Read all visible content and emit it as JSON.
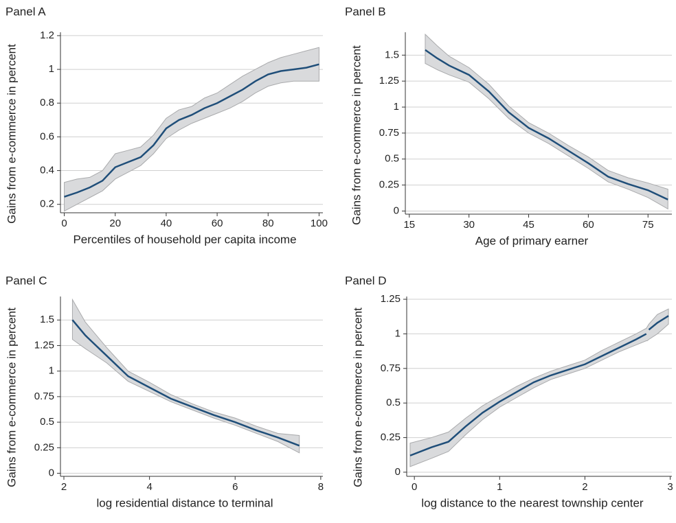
{
  "chart_data": [
    {
      "type": "line",
      "title": "Panel A",
      "xlabel": "Percentiles of household per capita income",
      "ylabel": "Gains from e-commerce in percent",
      "x": [
        0,
        5,
        10,
        15,
        20,
        25,
        30,
        35,
        40,
        45,
        50,
        55,
        60,
        65,
        70,
        75,
        80,
        85,
        90,
        95,
        100
      ],
      "series": [
        {
          "color": "#1f4e79",
          "band_color": "#d9dadc",
          "values": [
            0.245,
            0.27,
            0.3,
            0.34,
            0.42,
            0.45,
            0.48,
            0.55,
            0.65,
            0.7,
            0.73,
            0.77,
            0.8,
            0.84,
            0.88,
            0.93,
            0.97,
            0.99,
            1.0,
            1.01,
            1.03
          ],
          "lower": [
            0.16,
            0.2,
            0.24,
            0.28,
            0.35,
            0.39,
            0.43,
            0.5,
            0.59,
            0.64,
            0.68,
            0.71,
            0.74,
            0.77,
            0.81,
            0.86,
            0.9,
            0.92,
            0.93,
            0.93,
            0.93
          ],
          "upper": [
            0.33,
            0.35,
            0.36,
            0.4,
            0.5,
            0.52,
            0.54,
            0.61,
            0.71,
            0.76,
            0.78,
            0.83,
            0.86,
            0.91,
            0.96,
            1.0,
            1.04,
            1.07,
            1.09,
            1.11,
            1.13
          ]
        }
      ],
      "xlim": [
        -1.5,
        101.5
      ],
      "xticks": [
        0,
        20,
        40,
        60,
        80,
        100
      ],
      "ylim": [
        0.15,
        1.22
      ],
      "yticks": [
        0.2,
        0.4,
        0.6,
        0.8,
        1,
        1.2
      ],
      "grid": true
    },
    {
      "type": "line",
      "title": "Panel B",
      "xlabel": "Age of primary earner",
      "ylabel": "Gains from e-commerce in percent",
      "x": [
        19,
        22,
        25,
        30,
        35,
        40,
        45,
        50,
        55,
        60,
        65,
        70,
        75,
        80
      ],
      "series": [
        {
          "color": "#1f4e79",
          "band_color": "#d9dadc",
          "values": [
            1.55,
            1.47,
            1.4,
            1.31,
            1.15,
            0.95,
            0.8,
            0.7,
            0.58,
            0.46,
            0.33,
            0.26,
            0.2,
            0.11
          ],
          "lower": [
            1.42,
            1.36,
            1.31,
            1.24,
            1.08,
            0.89,
            0.75,
            0.65,
            0.53,
            0.41,
            0.28,
            0.21,
            0.13,
            0.02
          ],
          "upper": [
            1.7,
            1.59,
            1.49,
            1.38,
            1.22,
            1.01,
            0.85,
            0.75,
            0.63,
            0.52,
            0.39,
            0.32,
            0.27,
            0.21
          ]
        }
      ],
      "xlim": [
        14,
        81
      ],
      "xticks": [
        15,
        30,
        45,
        60,
        75
      ],
      "ylim": [
        -0.03,
        1.72
      ],
      "yticks": [
        0,
        0.25,
        0.5,
        0.75,
        1,
        1.25,
        1.5
      ],
      "grid": true
    },
    {
      "type": "line",
      "title": "Panel C",
      "xlabel": "log residential distance to terminal",
      "ylabel": "Gains from e-commerce in percent",
      "x": [
        2.2,
        2.5,
        3,
        3.5,
        4,
        4.5,
        5,
        5.5,
        6,
        6.5,
        7,
        7.5
      ],
      "series": [
        {
          "color": "#1f4e79",
          "band_color": "#d9dadc",
          "values": [
            1.5,
            1.35,
            1.15,
            0.95,
            0.84,
            0.73,
            0.65,
            0.57,
            0.5,
            0.42,
            0.35,
            0.27
          ],
          "lower": [
            1.31,
            1.22,
            1.08,
            0.9,
            0.8,
            0.7,
            0.62,
            0.54,
            0.47,
            0.39,
            0.31,
            0.2
          ],
          "upper": [
            1.7,
            1.48,
            1.23,
            1.0,
            0.89,
            0.77,
            0.68,
            0.6,
            0.54,
            0.46,
            0.39,
            0.37
          ]
        }
      ],
      "xlim": [
        1.92,
        8.05
      ],
      "xticks": [
        2,
        4,
        6,
        8
      ],
      "ylim": [
        -0.03,
        1.73
      ],
      "yticks": [
        0,
        0.25,
        0.5,
        0.75,
        1,
        1.25,
        1.5
      ],
      "grid": true
    },
    {
      "type": "line",
      "title": "Panel D",
      "xlabel": "log distance to the nearest township center",
      "ylabel": "Gains from e-commerce in percent",
      "x": [
        -0.05,
        0.2,
        0.4,
        0.6,
        0.8,
        1.0,
        1.2,
        1.4,
        1.6,
        1.8,
        2.0,
        2.2,
        2.4,
        2.6,
        2.72,
        2.73,
        2.75,
        2.85,
        2.98
      ],
      "series": [
        {
          "color": "#1f4e79",
          "band_color": "#d9dadc",
          "values": [
            0.12,
            0.18,
            0.22,
            0.33,
            0.43,
            0.51,
            0.58,
            0.65,
            0.7,
            0.74,
            0.78,
            0.84,
            0.9,
            0.96,
            1.0,
            null,
            1.03,
            1.08,
            1.13
          ],
          "lower": [
            0.04,
            0.1,
            0.15,
            0.27,
            0.38,
            0.47,
            0.54,
            0.61,
            0.67,
            0.71,
            0.75,
            0.81,
            0.87,
            0.92,
            0.95,
            0.95,
            0.96,
            1.0,
            1.07
          ],
          "upper": [
            0.21,
            0.25,
            0.29,
            0.39,
            0.48,
            0.55,
            0.62,
            0.68,
            0.73,
            0.77,
            0.81,
            0.88,
            0.94,
            1.0,
            1.04,
            1.05,
            1.07,
            1.14,
            1.18
          ]
        }
      ],
      "xlim": [
        -0.09,
        3.02
      ],
      "xticks": [
        0,
        1,
        2,
        3
      ],
      "ylim": [
        -0.03,
        1.27
      ],
      "yticks": [
        0,
        0.25,
        0.5,
        0.75,
        1,
        1.25
      ],
      "grid": true
    }
  ]
}
